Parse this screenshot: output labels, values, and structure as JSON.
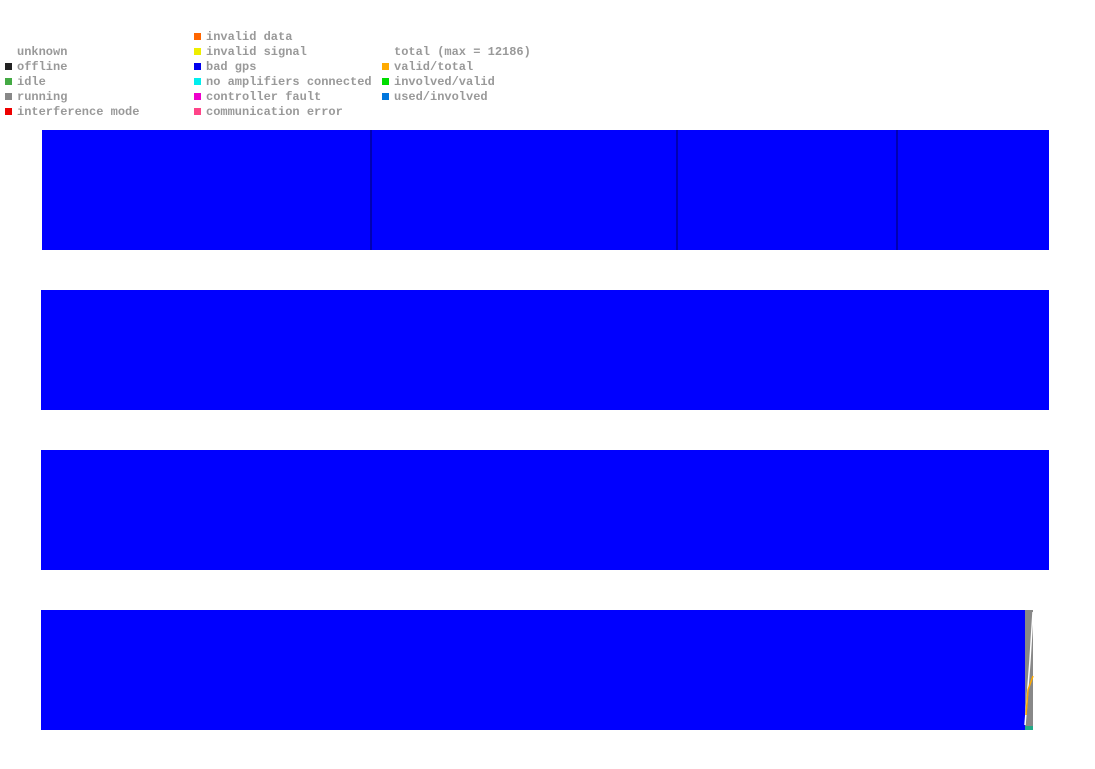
{
  "legend": {
    "columns": [
      [
        {
          "label": "unknown",
          "color": null
        },
        {
          "label": "offline",
          "color": "#222222"
        },
        {
          "label": "idle",
          "color": "#44aa44"
        },
        {
          "label": "running",
          "color": "#888888"
        },
        {
          "label": "interference mode",
          "color": "#ee0000"
        }
      ],
      [
        {
          "label": "invalid data",
          "color": "#ff6600"
        },
        {
          "label": "invalid signal",
          "color": "#eeee00"
        },
        {
          "label": "bad gps",
          "color": "#0000ee"
        },
        {
          "label": "no amplifiers connected",
          "color": "#00eeee"
        },
        {
          "label": "controller fault",
          "color": "#ee00cc"
        },
        {
          "label": "communication error",
          "color": "#ff4488"
        }
      ],
      [
        {
          "label": "total (max = 12186)",
          "color": null
        },
        {
          "label": "valid/total",
          "color": "#ffaa00"
        },
        {
          "label": "involved/valid",
          "color": "#00dd00"
        },
        {
          "label": "used/involved",
          "color": "#0077dd"
        }
      ]
    ]
  }
}
